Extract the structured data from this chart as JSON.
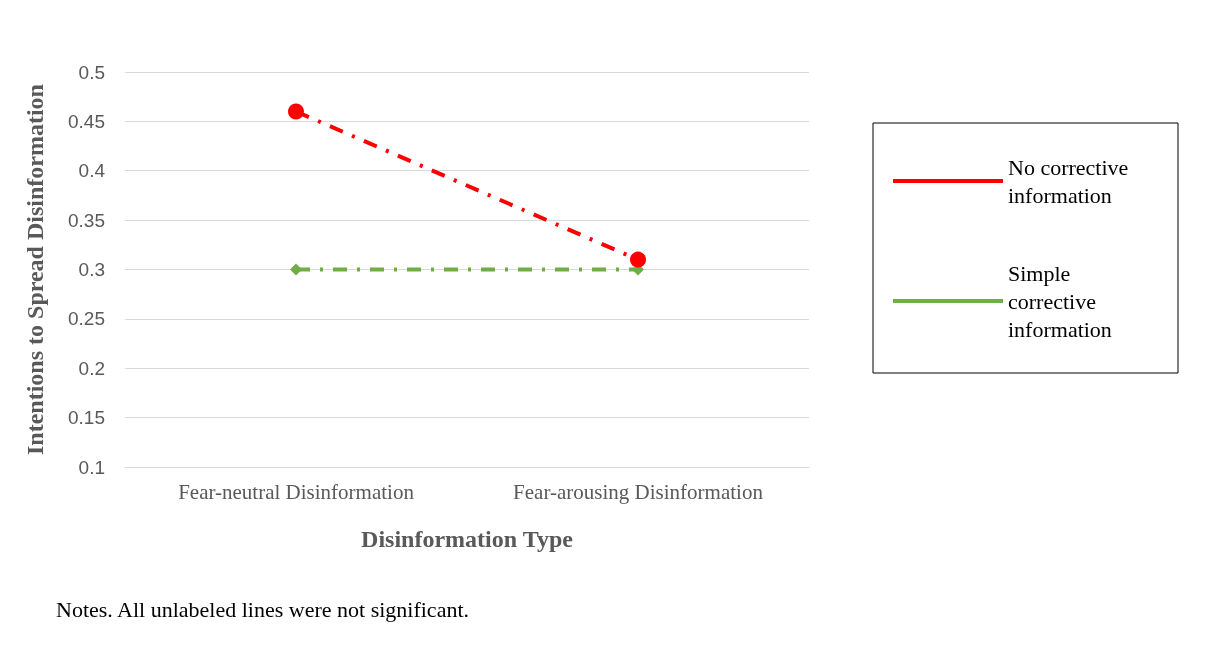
{
  "chart_data": {
    "type": "line",
    "xlabel": "Disinformation Type",
    "ylabel": "Intentions to Spread Disinformation",
    "categories": [
      "Fear-neutral Disinformation",
      "Fear-arousing Disinformation"
    ],
    "series": [
      {
        "name": "No corrective information",
        "color": "#ff0000",
        "values": [
          0.46,
          0.31
        ],
        "marker": "circle",
        "line_style": "dashed"
      },
      {
        "name": "Simple corrective information",
        "color": "#70ad47",
        "values": [
          0.3,
          0.3
        ],
        "marker": "diamond",
        "line_style": "dashed"
      }
    ],
    "ylim": [
      0.1,
      0.5
    ],
    "yticks": [
      0.1,
      0.15,
      0.2,
      0.25,
      0.3,
      0.35,
      0.4,
      0.45,
      0.5
    ],
    "grid": "y",
    "legend": "right",
    "annotations": [
      "Notes. All unlabeled lines were not significant."
    ]
  }
}
